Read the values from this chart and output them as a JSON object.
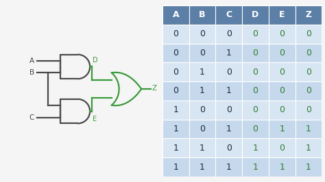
{
  "table_header": [
    "A",
    "B",
    "C",
    "D",
    "E",
    "Z"
  ],
  "table_data": [
    [
      0,
      0,
      0,
      0,
      0,
      0
    ],
    [
      0,
      0,
      1,
      0,
      0,
      0
    ],
    [
      0,
      1,
      0,
      0,
      0,
      0
    ],
    [
      0,
      1,
      1,
      0,
      0,
      0
    ],
    [
      1,
      0,
      0,
      0,
      0,
      0
    ],
    [
      1,
      0,
      1,
      0,
      1,
      1
    ],
    [
      1,
      1,
      0,
      1,
      0,
      1
    ],
    [
      1,
      1,
      1,
      1,
      1,
      1
    ]
  ],
  "col_input_color": "#1c2b3a",
  "col_output_color": "#2e7d32",
  "header_bg": "#5b7fa6",
  "header_text_color": "#ffffff",
  "row_bg_light": "#d8e6f3",
  "row_bg_dark": "#c5d8ec",
  "gate_color": "#4a4a4a",
  "gate_output_color": "#3a9a3a",
  "label_color": "#444444",
  "output_label_color": "#3a9a3a",
  "figure_bg": "#f5f5f5",
  "panel_bg": "#ffffff"
}
